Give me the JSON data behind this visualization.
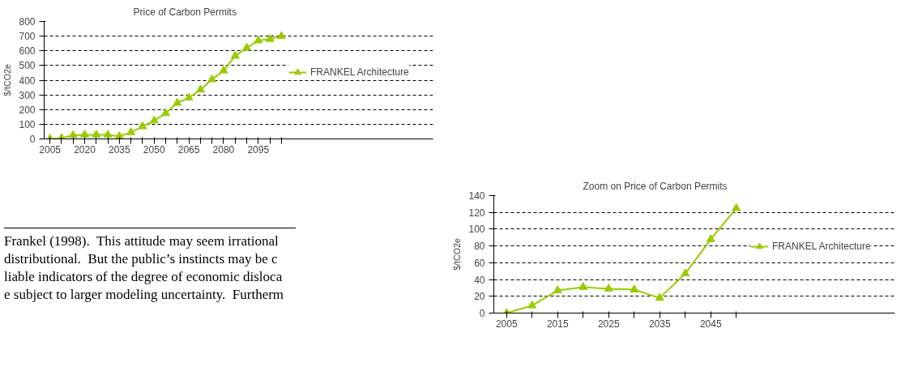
{
  "chart_data": [
    {
      "type": "line",
      "title": "Price of Carbon Permits",
      "ylabel": "$/tCO2e",
      "categories": [
        "2005",
        null,
        null,
        "2020",
        null,
        null,
        "2035",
        null,
        null,
        "2050",
        null,
        null,
        "2065",
        null,
        null,
        "2080",
        null,
        null,
        "2095",
        null,
        null
      ],
      "series": [
        {
          "name": "FRANKEL Architecture",
          "color": "#99cc00",
          "values": [
            0,
            5,
            25,
            28,
            28,
            28,
            18,
            45,
            85,
            125,
            175,
            245,
            280,
            335,
            405,
            465,
            565,
            620,
            670,
            680,
            700
          ]
        }
      ],
      "ylim": [
        0,
        800
      ],
      "yticks": [
        0,
        100,
        200,
        300,
        400,
        500,
        600,
        700,
        800
      ],
      "grid": "y",
      "legend": "right",
      "marker": "triangle",
      "line_style": "solid",
      "annotations": [
        "Frankel (1998).   This attitude may seem irrational",
        "distributional.   But the public’s instincts may be c",
        "liable indicators of the degree of economic disloca",
        "e subject to larger modeling uncertainty.  Furtherm"
      ]
    },
    {
      "type": "line",
      "title": "Zoom on Price of Carbon Permits",
      "ylabel": "$/tCO2e",
      "categories": [
        "2005",
        null,
        "2015",
        null,
        "2025",
        null,
        "2035",
        null,
        "2045",
        null
      ],
      "series": [
        {
          "name": "FRANKEL Architecture",
          "color": "#99cc00",
          "values": [
            0,
            9,
            27,
            31,
            29,
            28,
            18,
            47,
            88,
            125
          ]
        }
      ],
      "ylim": [
        0,
        140
      ],
      "yticks": [
        0,
        20,
        40,
        60,
        80,
        100,
        120,
        140
      ],
      "grid": "y",
      "legend": "right",
      "marker": "triangle",
      "line_style": "solid"
    }
  ]
}
